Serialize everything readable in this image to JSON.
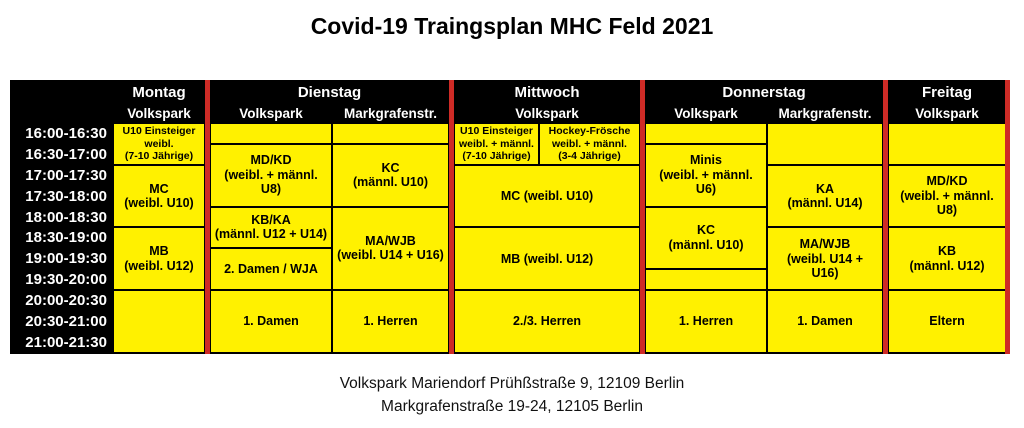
{
  "title": "Covid-19 Traingsplan MHC Feld 2021",
  "colors": {
    "cell_yellow": "#FFF100",
    "separator_red": "#CE2B26",
    "header_bg": "#000000",
    "header_text": "#FFFFFF",
    "cell_text": "#000000"
  },
  "header": {
    "days": [
      {
        "label": "Montag",
        "venues": [
          "Volkspark"
        ]
      },
      {
        "label": "Dienstag",
        "venues": [
          "Volkspark",
          "Markgrafenstr."
        ]
      },
      {
        "label": "Mittwoch",
        "venues": [
          "Volkspark"
        ]
      },
      {
        "label": "Donnerstag",
        "venues": [
          "Volkspark",
          "Markgrafenstr."
        ]
      },
      {
        "label": "Freitag",
        "venues": [
          "Volkspark"
        ]
      }
    ]
  },
  "schedule": {
    "times": [
      "16:00-16:30",
      "16:30-17:00",
      "17:00-17:30",
      "17:30-18:00",
      "18:00-18:30",
      "18:30-19:00",
      "19:00-19:30",
      "19:30-20:00",
      "20:00-20:30",
      "20:30-21:00",
      "21:00-21:30"
    ],
    "cells": [
      {
        "col": "montag.volkspark",
        "rows": [
          1,
          2
        ],
        "small": true,
        "lines": [
          "U10 Einsteiger",
          "weibl.",
          "(7-10 Jährige)"
        ]
      },
      {
        "col": "montag.volkspark",
        "rows": [
          3,
          5
        ],
        "lines": [
          "MC",
          "(weibl. U10)"
        ]
      },
      {
        "col": "montag.volkspark",
        "rows": [
          6,
          8
        ],
        "lines": [
          "MB",
          "(weibl. U12)"
        ]
      },
      {
        "col": "montag.volkspark",
        "rows": [
          9,
          11
        ],
        "lines": []
      },
      {
        "col": "dienstag.volkspark",
        "rows": [
          1,
          1
        ],
        "lines": []
      },
      {
        "col": "dienstag.volkspark",
        "rows": [
          2,
          4
        ],
        "lines": [
          "MD/KD",
          "(weibl. + männl.",
          "U8)"
        ]
      },
      {
        "col": "dienstag.volkspark",
        "rows": [
          5,
          6
        ],
        "lines": [
          "KB/KA",
          "(männl. U12 + U14)"
        ]
      },
      {
        "col": "dienstag.volkspark",
        "rows": [
          7,
          8
        ],
        "lines": [
          "2. Damen / WJA"
        ]
      },
      {
        "col": "dienstag.volkspark",
        "rows": [
          9,
          11
        ],
        "lines": [
          "1. Damen"
        ]
      },
      {
        "col": "dienstag.markgrafenstr",
        "rows": [
          1,
          1
        ],
        "lines": []
      },
      {
        "col": "dienstag.markgrafenstr",
        "rows": [
          2,
          4
        ],
        "lines": [
          "KC",
          "(männl. U10)"
        ]
      },
      {
        "col": "dienstag.markgrafenstr",
        "rows": [
          5,
          8
        ],
        "lines": [
          "MA/WJB",
          "(weibl. U14 + U16)"
        ]
      },
      {
        "col": "dienstag.markgrafenstr",
        "rows": [
          9,
          11
        ],
        "lines": [
          "1. Herren"
        ]
      },
      {
        "col": "mittwoch.volkspark-left",
        "rows": [
          1,
          2
        ],
        "small": true,
        "lines": [
          "U10 Einsteiger",
          "weibl. + männl.",
          "(7-10 Jährige)"
        ]
      },
      {
        "col": "mittwoch.volkspark-right",
        "rows": [
          1,
          2
        ],
        "small": true,
        "lines": [
          "Hockey-Frösche",
          "weibl. + männl.",
          "(3-4 Jährige)"
        ]
      },
      {
        "col": "mittwoch.volkspark",
        "rows": [
          3,
          5
        ],
        "lines": [
          "MC (weibl. U10)"
        ]
      },
      {
        "col": "mittwoch.volkspark",
        "rows": [
          6,
          8
        ],
        "lines": [
          "MB (weibl. U12)"
        ]
      },
      {
        "col": "mittwoch.volkspark",
        "rows": [
          9,
          11
        ],
        "lines": [
          "2./3. Herren"
        ]
      },
      {
        "col": "donnerstag.volkspark",
        "rows": [
          1,
          1
        ],
        "lines": []
      },
      {
        "col": "donnerstag.volkspark",
        "rows": [
          2,
          4
        ],
        "lines": [
          "Minis",
          "(weibl. + männl.",
          "U6)"
        ]
      },
      {
        "col": "donnerstag.volkspark",
        "rows": [
          5,
          7
        ],
        "lines": [
          "KC",
          "(männl. U10)"
        ]
      },
      {
        "col": "donnerstag.volkspark",
        "rows": [
          8,
          8
        ],
        "lines": []
      },
      {
        "col": "donnerstag.volkspark",
        "rows": [
          9,
          11
        ],
        "lines": [
          "1. Herren"
        ]
      },
      {
        "col": "donnerstag.markgrafenstr",
        "rows": [
          1,
          2
        ],
        "lines": []
      },
      {
        "col": "donnerstag.markgrafenstr",
        "rows": [
          3,
          5
        ],
        "lines": [
          "KA",
          "(männl. U14)"
        ]
      },
      {
        "col": "donnerstag.markgrafenstr",
        "rows": [
          6,
          8
        ],
        "lines": [
          "MA/WJB",
          "(weibl. U14 +",
          "U16)"
        ]
      },
      {
        "col": "donnerstag.markgrafenstr",
        "rows": [
          9,
          11
        ],
        "lines": [
          "1. Damen"
        ]
      },
      {
        "col": "freitag.volkspark",
        "rows": [
          1,
          2
        ],
        "lines": []
      },
      {
        "col": "freitag.volkspark",
        "rows": [
          3,
          5
        ],
        "lines": [
          "MD/KD",
          "(weibl. + männl.",
          "U8)"
        ]
      },
      {
        "col": "freitag.volkspark",
        "rows": [
          6,
          8
        ],
        "lines": [
          "KB",
          "(männl. U12)"
        ]
      },
      {
        "col": "freitag.volkspark",
        "rows": [
          9,
          11
        ],
        "lines": [
          "Eltern"
        ]
      }
    ]
  },
  "footer": {
    "lines": [
      "Volkspark Mariendorf Prühßstraße 9, 12109 Berlin",
      "Markgrafenstraße 19-24, 12105 Berlin"
    ]
  }
}
